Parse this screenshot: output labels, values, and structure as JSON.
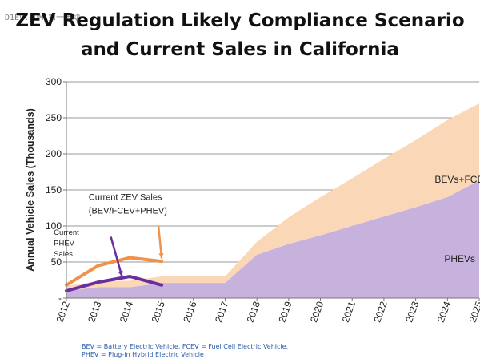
{
  "watermark": "D1EV.COM 第一电动",
  "title_line1": "ZEV Regulation Likely Compliance Scenario",
  "title_line2": "and Current Sales in California",
  "footnote_line1": "BEV = Battery Electric Vehicle, FCEV = Fuel Cell Electric Vehicle,",
  "footnote_line2": "PHEV = Plug-in Hybrid Electric Vehicle",
  "colors": {
    "bev_fcev_area": "#fad7b7",
    "phev_area": "#c7b2dd",
    "current_zev_line": "#f0924a",
    "current_phev_line": "#6a2f9e",
    "footnote": "#2b5ba8"
  },
  "chart_data": {
    "type": "area",
    "title": "ZEV Regulation Likely Compliance Scenario and Current Sales in California",
    "ylabel": "Annual Vehicle Sales (Thousands)",
    "xlabel": "",
    "x": [
      2012,
      2013,
      2014,
      2015,
      2016,
      2017,
      2018,
      2019,
      2020,
      2021,
      2022,
      2023,
      2024,
      2025
    ],
    "xlim": [
      2012,
      2025
    ],
    "ylim": [
      0,
      300
    ],
    "yticks": [
      0,
      50,
      100,
      150,
      200,
      250,
      300
    ],
    "ytick_labels": [
      "-",
      "50",
      "100",
      "150",
      "200",
      "250",
      "300"
    ],
    "grid": true,
    "series": [
      {
        "name": "PHEVs",
        "kind": "area",
        "values": [
          10,
          15,
          15,
          21,
          21,
          21,
          60,
          75,
          87,
          100,
          113,
          126,
          140,
          163
        ]
      },
      {
        "name": "BEVs+FCEVs",
        "kind": "area-stacked",
        "values": [
          7,
          8,
          9,
          9,
          9,
          9,
          18,
          37,
          53,
          66,
          80,
          93,
          107,
          107
        ],
        "upper_total": [
          17,
          23,
          24,
          30,
          30,
          30,
          78,
          112,
          140,
          166,
          193,
          219,
          247,
          270
        ]
      },
      {
        "name": "Current ZEV Sales (BEV/FCEV+PHEV)",
        "kind": "line",
        "x": [
          2012,
          2013,
          2014,
          2015
        ],
        "values": [
          18,
          45,
          56,
          51
        ]
      },
      {
        "name": "Current PHEV Sales",
        "kind": "line",
        "x": [
          2012,
          2013,
          2014,
          2015
        ],
        "values": [
          10,
          22,
          30,
          18
        ]
      }
    ],
    "annotations": [
      {
        "text": "BEVs+FCEVs",
        "x": 2023.6,
        "y": 160
      },
      {
        "text": "PHEVs",
        "x": 2023.9,
        "y": 50
      },
      {
        "text": "Current ZEV Sales",
        "x": 2012.7,
        "y": 136
      },
      {
        "text": "(BEV/FCEV+PHEV)",
        "x": 2012.7,
        "y": 117
      },
      {
        "text": "Current",
        "x": 2011.6,
        "y": 88
      },
      {
        "text": "PHEV",
        "x": 2011.6,
        "y": 73
      },
      {
        "text": "Sales",
        "x": 2011.6,
        "y": 58
      }
    ]
  }
}
